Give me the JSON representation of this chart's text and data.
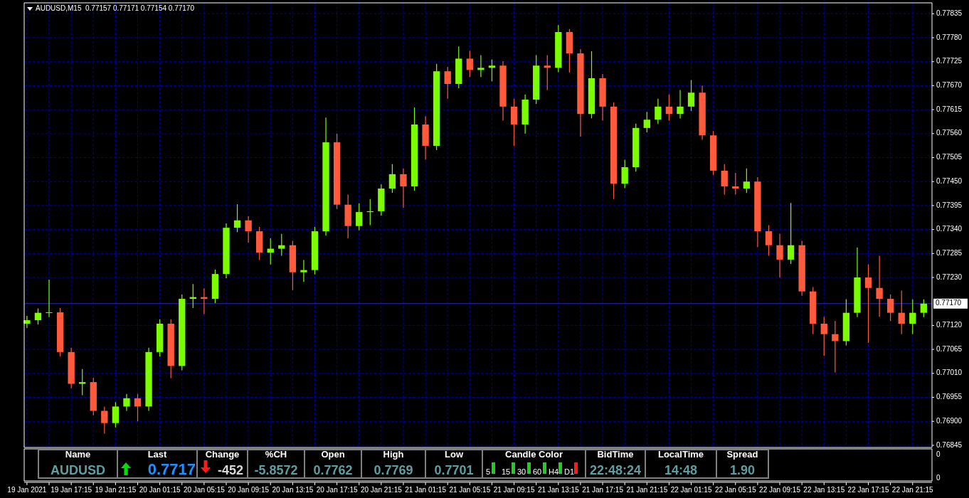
{
  "chart_data": [
    {
      "type": "candlestick",
      "title": "AUDUSD,M15  0.77157 0.77171 0.77154 0.77170",
      "x": [
        "2021-01-19T13:15",
        "2021-01-19T14:15",
        "2021-01-19T15:15",
        "2021-01-19T16:15",
        "2021-01-19T17:15",
        "2021-01-19T18:15",
        "2021-01-19T19:15",
        "2021-01-19T20:15",
        "2021-01-19T21:15",
        "2021-01-19T22:15",
        "2021-01-19T23:15",
        "2021-01-20T00:15",
        "2021-01-20T01:15",
        "2021-01-20T02:15",
        "2021-01-20T03:15",
        "2021-01-20T04:15",
        "2021-01-20T05:15",
        "2021-01-20T06:15",
        "2021-01-20T07:15",
        "2021-01-20T08:15",
        "2021-01-20T09:15",
        "2021-01-20T10:15",
        "2021-01-20T11:15",
        "2021-01-20T12:15",
        "2021-01-20T13:15",
        "2021-01-20T14:15",
        "2021-01-20T15:15",
        "2021-01-20T16:15",
        "2021-01-20T17:15",
        "2021-01-20T18:15",
        "2021-01-20T19:15",
        "2021-01-20T20:15",
        "2021-01-20T21:15",
        "2021-01-20T22:15",
        "2021-01-20T23:15",
        "2021-01-21T00:15",
        "2021-01-21T01:15",
        "2021-01-21T02:15",
        "2021-01-21T03:15",
        "2021-01-21T04:15",
        "2021-01-21T05:15",
        "2021-01-21T06:15",
        "2021-01-21T07:15",
        "2021-01-21T08:15",
        "2021-01-21T09:15",
        "2021-01-21T10:15",
        "2021-01-21T11:15",
        "2021-01-21T12:15",
        "2021-01-21T13:15",
        "2021-01-21T14:15",
        "2021-01-21T15:15",
        "2021-01-21T16:15",
        "2021-01-21T17:15",
        "2021-01-21T18:15",
        "2021-01-21T19:15",
        "2021-01-21T20:15",
        "2021-01-21T21:15",
        "2021-01-21T22:15",
        "2021-01-21T23:15",
        "2021-01-22T00:15",
        "2021-01-22T01:15",
        "2021-01-22T02:15",
        "2021-01-22T03:15",
        "2021-01-22T04:15",
        "2021-01-22T05:15",
        "2021-01-22T06:15",
        "2021-01-22T07:15",
        "2021-01-22T08:15",
        "2021-01-22T09:15",
        "2021-01-22T10:15",
        "2021-01-22T11:15",
        "2021-01-22T12:15",
        "2021-01-22T13:15",
        "2021-01-22T14:15",
        "2021-01-22T15:15",
        "2021-01-22T16:15",
        "2021-01-22T17:15",
        "2021-01-22T18:15",
        "2021-01-22T19:15",
        "2021-01-22T20:15",
        "2021-01-22T21:15",
        "2021-01-22T22:15"
      ],
      "ohlc": [
        [
          0.77124,
          0.77142,
          0.77114,
          0.77132
        ],
        [
          0.77132,
          0.77159,
          0.77122,
          0.77149
        ],
        [
          0.77149,
          0.77225,
          0.77139,
          0.7715
        ],
        [
          0.7715,
          0.7716,
          0.77049,
          0.77059
        ],
        [
          0.77059,
          0.77069,
          0.76976,
          0.76986
        ],
        [
          0.76986,
          0.7702,
          0.7696,
          0.7699
        ],
        [
          0.7699,
          0.77,
          0.76914,
          0.76924
        ],
        [
          0.76924,
          0.76934,
          0.76872,
          0.76896
        ],
        [
          0.76896,
          0.76944,
          0.76886,
          0.76934
        ],
        [
          0.76934,
          0.76963,
          0.76924,
          0.76953
        ],
        [
          0.76953,
          0.76963,
          0.769,
          0.76934
        ],
        [
          0.76934,
          0.77069,
          0.76924,
          0.77059
        ],
        [
          0.77059,
          0.77134,
          0.77049,
          0.77124
        ],
        [
          0.77124,
          0.77134,
          0.76999,
          0.77027
        ],
        [
          0.77027,
          0.77191,
          0.77017,
          0.77181
        ],
        [
          0.77181,
          0.77215,
          0.7716,
          0.77185
        ],
        [
          0.77185,
          0.77205,
          0.77146,
          0.77181
        ],
        [
          0.77181,
          0.77248,
          0.77171,
          0.77238
        ],
        [
          0.77238,
          0.77354,
          0.77228,
          0.77344
        ],
        [
          0.77344,
          0.77398,
          0.77334,
          0.77361
        ],
        [
          0.77361,
          0.77371,
          0.7731,
          0.77336
        ],
        [
          0.77336,
          0.77346,
          0.7727,
          0.77287
        ],
        [
          0.77287,
          0.7732,
          0.7726,
          0.77296
        ],
        [
          0.77296,
          0.7733,
          0.7728,
          0.77304
        ],
        [
          0.77304,
          0.77314,
          0.77201,
          0.77242
        ],
        [
          0.77242,
          0.7727,
          0.7722,
          0.77247
        ],
        [
          0.77247,
          0.77346,
          0.77237,
          0.77336
        ],
        [
          0.77336,
          0.77597,
          0.77326,
          0.7754
        ],
        [
          0.7754,
          0.7756,
          0.77387,
          0.77397
        ],
        [
          0.77397,
          0.7742,
          0.7732,
          0.77348
        ],
        [
          0.77348,
          0.774,
          0.77338,
          0.7738
        ],
        [
          0.7738,
          0.7741,
          0.7735,
          0.77382
        ],
        [
          0.77382,
          0.77444,
          0.77372,
          0.77434
        ],
        [
          0.77434,
          0.7749,
          0.77424,
          0.77467
        ],
        [
          0.77467,
          0.7748,
          0.7739,
          0.77439
        ],
        [
          0.77439,
          0.7762,
          0.77429,
          0.77581
        ],
        [
          0.77581,
          0.776,
          0.775,
          0.77532
        ],
        [
          0.77532,
          0.7772,
          0.77522,
          0.77703
        ],
        [
          0.77703,
          0.77713,
          0.7764,
          0.77674
        ],
        [
          0.77674,
          0.7776,
          0.77664,
          0.77732
        ],
        [
          0.77732,
          0.7775,
          0.7769,
          0.77706
        ],
        [
          0.77706,
          0.7774,
          0.7769,
          0.77711
        ],
        [
          0.77711,
          0.7773,
          0.7768,
          0.77716
        ],
        [
          0.77716,
          0.77726,
          0.7759,
          0.77622
        ],
        [
          0.77622,
          0.7764,
          0.77532,
          0.77581
        ],
        [
          0.77581,
          0.7765,
          0.7756,
          0.77638
        ],
        [
          0.77638,
          0.7774,
          0.77628,
          0.77716
        ],
        [
          0.77716,
          0.7774,
          0.7766,
          0.77711
        ],
        [
          0.77711,
          0.77809,
          0.77701,
          0.77793
        ],
        [
          0.77793,
          0.778,
          0.777,
          0.77744
        ],
        [
          0.77744,
          0.77754,
          0.77553,
          0.77605
        ],
        [
          0.77605,
          0.77749,
          0.77595,
          0.77687
        ],
        [
          0.77687,
          0.77697,
          0.7759,
          0.77622
        ],
        [
          0.77622,
          0.77632,
          0.7741,
          0.77445
        ],
        [
          0.77445,
          0.775,
          0.77435,
          0.77483
        ],
        [
          0.77483,
          0.77583,
          0.77473,
          0.77573
        ],
        [
          0.77573,
          0.7761,
          0.77563,
          0.77592
        ],
        [
          0.77592,
          0.7764,
          0.77582,
          0.77622
        ],
        [
          0.77622,
          0.7765,
          0.7759,
          0.77605
        ],
        [
          0.77605,
          0.7766,
          0.77595,
          0.77622
        ],
        [
          0.77622,
          0.77683,
          0.77612,
          0.77654
        ],
        [
          0.77654,
          0.7767,
          0.77546,
          0.77556
        ],
        [
          0.77556,
          0.77566,
          0.77465,
          0.77475
        ],
        [
          0.77475,
          0.7749,
          0.7742,
          0.77439
        ],
        [
          0.77439,
          0.7747,
          0.7742,
          0.77434
        ],
        [
          0.77434,
          0.7748,
          0.77424,
          0.7745
        ],
        [
          0.7745,
          0.7746,
          0.773,
          0.77336
        ],
        [
          0.77336,
          0.7735,
          0.7728,
          0.77304
        ],
        [
          0.77304,
          0.7733,
          0.7723,
          0.77271
        ],
        [
          0.77271,
          0.77401,
          0.77261,
          0.77304
        ],
        [
          0.77304,
          0.77314,
          0.77188,
          0.77198
        ],
        [
          0.77198,
          0.77208,
          0.771,
          0.77124
        ],
        [
          0.77124,
          0.7714,
          0.7705,
          0.771
        ],
        [
          0.771,
          0.7713,
          0.77012,
          0.77084
        ],
        [
          0.77084,
          0.7718,
          0.77074,
          0.77149
        ],
        [
          0.77149,
          0.77299,
          0.77139,
          0.7723
        ],
        [
          0.7723,
          0.7726,
          0.7708,
          0.77206
        ],
        [
          0.77206,
          0.7728,
          0.7714,
          0.77181
        ],
        [
          0.77181,
          0.77191,
          0.7713,
          0.77149
        ],
        [
          0.77149,
          0.772,
          0.771,
          0.77124
        ],
        [
          0.77124,
          0.7718,
          0.771,
          0.77149
        ],
        [
          0.77149,
          0.7718,
          0.77139,
          0.7717
        ]
      ],
      "xlim": [
        "2021-01-19T13:00",
        "2021-01-22T23:00"
      ],
      "xticks": [
        {
          "value": "2021-01-19T13:15",
          "label": "19 Jan 2021"
        },
        {
          "value": "2021-01-19T15:15",
          "label": null
        },
        {
          "value": "2021-01-19T17:15",
          "label": "19 Jan 17:15"
        },
        {
          "value": "2021-01-19T19:15",
          "label": null
        },
        {
          "value": "2021-01-19T21:15",
          "label": "19 Jan 21:15"
        },
        {
          "value": "2021-01-19T23:15",
          "label": null
        },
        {
          "value": "2021-01-20T01:15",
          "label": "20 Jan 01:15"
        },
        {
          "value": "2021-01-20T03:15",
          "label": null
        },
        {
          "value": "2021-01-20T05:15",
          "label": "20 Jan 05:15"
        },
        {
          "value": "2021-01-20T07:15",
          "label": null
        },
        {
          "value": "2021-01-20T09:15",
          "label": "20 Jan 09:15"
        },
        {
          "value": "2021-01-20T11:15",
          "label": null
        },
        {
          "value": "2021-01-20T13:15",
          "label": "20 Jan 13:15"
        },
        {
          "value": "2021-01-20T15:15",
          "label": null
        },
        {
          "value": "2021-01-20T17:15",
          "label": "20 Jan 17:15"
        },
        {
          "value": "2021-01-20T19:15",
          "label": null
        },
        {
          "value": "2021-01-20T21:15",
          "label": "20 Jan 21:15"
        },
        {
          "value": "2021-01-20T23:15",
          "label": null
        },
        {
          "value": "2021-01-21T01:15",
          "label": "21 Jan 01:15"
        },
        {
          "value": "2021-01-21T03:15",
          "label": null
        },
        {
          "value": "2021-01-21T05:15",
          "label": "21 Jan 05:15"
        },
        {
          "value": "2021-01-21T07:15",
          "label": null
        },
        {
          "value": "2021-01-21T09:15",
          "label": "21 Jan 09:15"
        },
        {
          "value": "2021-01-21T11:15",
          "label": null
        },
        {
          "value": "2021-01-21T13:15",
          "label": "21 Jan 13:15"
        },
        {
          "value": "2021-01-21T15:15",
          "label": null
        },
        {
          "value": "2021-01-21T17:15",
          "label": "21 Jan 17:15"
        },
        {
          "value": "2021-01-21T19:15",
          "label": null
        },
        {
          "value": "2021-01-21T21:15",
          "label": "21 Jan 21:15"
        },
        {
          "value": "2021-01-21T23:15",
          "label": null
        },
        {
          "value": "2021-01-22T01:15",
          "label": "22 Jan 01:15"
        },
        {
          "value": "2021-01-22T03:15",
          "label": null
        },
        {
          "value": "2021-01-22T05:15",
          "label": "22 Jan 05:15"
        },
        {
          "value": "2021-01-22T07:15",
          "label": null
        },
        {
          "value": "2021-01-22T09:15",
          "label": "22 Jan 09:15"
        },
        {
          "value": "2021-01-22T11:15",
          "label": null
        },
        {
          "value": "2021-01-22T13:15",
          "label": "22 Jan 13:15"
        },
        {
          "value": "2021-01-22T15:15",
          "label": null
        },
        {
          "value": "2021-01-22T17:15",
          "label": "22 Jan 17:15"
        },
        {
          "value": "2021-01-22T19:15",
          "label": null
        },
        {
          "value": "2021-01-22T21:15",
          "label": "22 Jan 21:15"
        }
      ],
      "ylim": [
        0.7684,
        0.7786
      ],
      "yticks": [
        0.77835,
        {
          "value": 0.7778,
          "label": "0.77780"
        },
        0.77725,
        {
          "value": 0.7767,
          "label": "0.77670"
        },
        0.77615,
        {
          "value": 0.7756,
          "label": "0.77560"
        },
        0.77505,
        {
          "value": 0.7745,
          "label": "0.77450"
        },
        0.77395,
        {
          "value": 0.7734,
          "label": "0.77340"
        },
        0.77285,
        {
          "value": 0.7723,
          "label": "0.77230"
        },
        {
          "value": 0.7712,
          "label": "0.77120"
        },
        0.77065,
        {
          "value": 0.7701,
          "label": "0.77010"
        },
        0.76955,
        {
          "value": 0.769,
          "label": "0.76900"
        },
        0.76845
      ],
      "ref_lines": [
        {
          "axis": "y",
          "value": 0.7717,
          "label": "0.77170",
          "color": "#2828c8"
        }
      ],
      "grid": true
    },
    {
      "type": "other",
      "categories": [
        "Name",
        "Last",
        "Change",
        "%CH",
        "Open",
        "High",
        "Low",
        "Candle Color",
        "BidTime",
        "LocalTime",
        "Spread"
      ],
      "value_labels": [
        "AUDUSD",
        "0.7717",
        "-452",
        "-5.8572",
        "0.7762",
        "0.7769",
        "0.7701",
        "5 15 30 60 H4 D1",
        "22:48:24",
        "14:48",
        "1.90"
      ],
      "annotations": [
        "0",
        "0"
      ]
    }
  ]
}
